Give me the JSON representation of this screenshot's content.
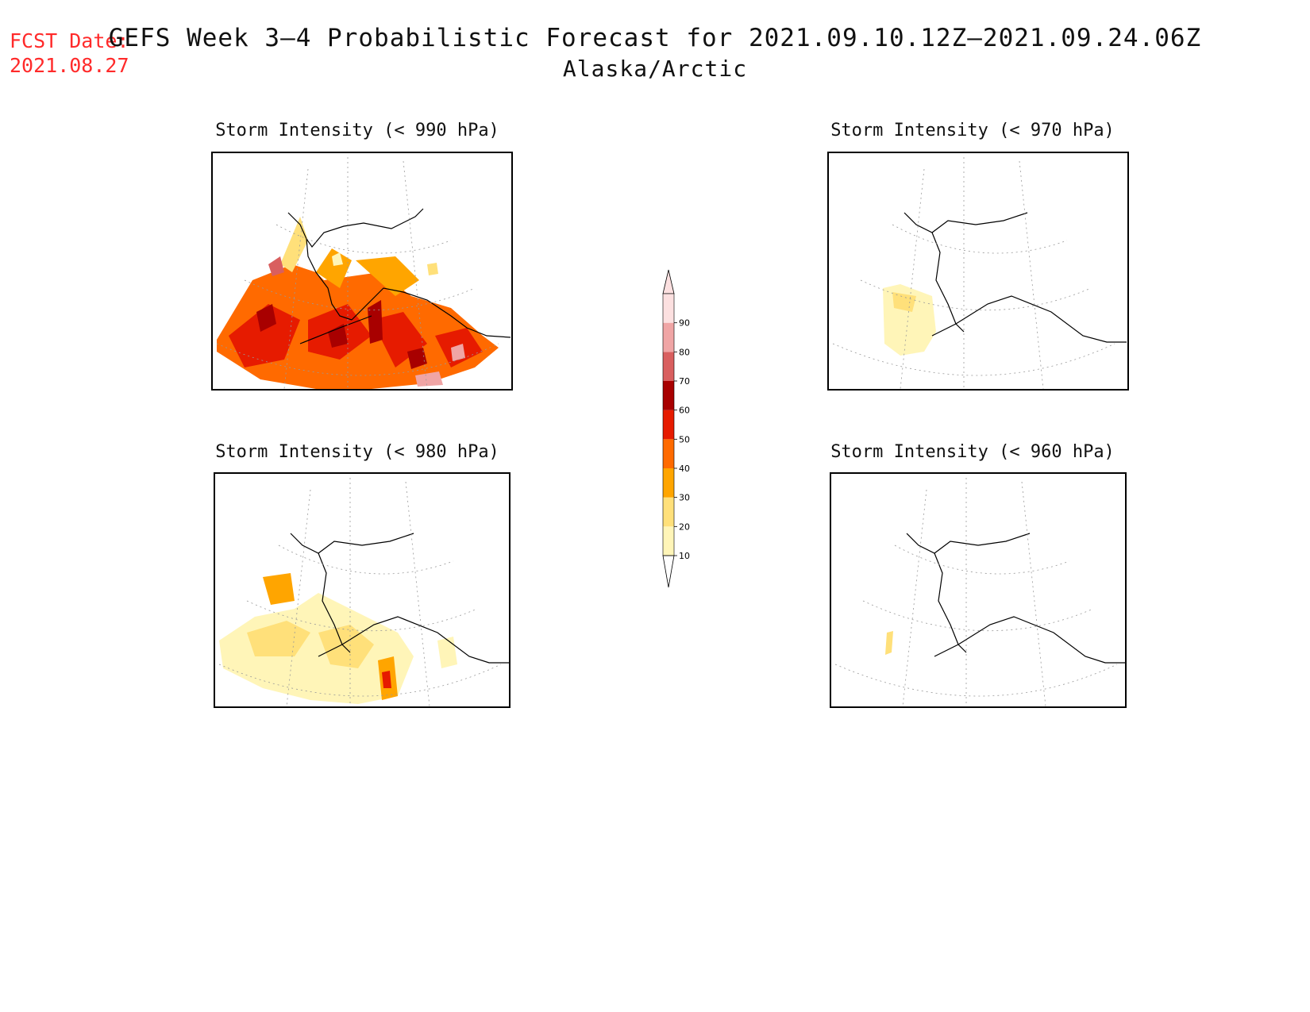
{
  "header": {
    "fcst_label": "FCST Date:",
    "fcst_date": "2021.08.27",
    "title": "GEFS Week 3–4 Probabilistic Forecast for 2021.09.10.12Z–2021.09.24.06Z",
    "subtitle": "Alaska/Arctic"
  },
  "panels": [
    {
      "id": "p990",
      "title": "Storm Intensity (< 990 hPa)",
      "coverage": "high"
    },
    {
      "id": "p970",
      "title": "Storm Intensity (< 970 hPa)",
      "coverage": "low"
    },
    {
      "id": "p980",
      "title": "Storm Intensity (< 980 hPa)",
      "coverage": "medium"
    },
    {
      "id": "p960",
      "title": "Storm Intensity (< 960 hPa)",
      "coverage": "minimal"
    }
  ],
  "colorbar": {
    "levels": [
      "10",
      "20",
      "30",
      "40",
      "50",
      "60",
      "70",
      "80",
      "90"
    ],
    "colors": [
      "#fff5b8",
      "#ffe07a",
      "#ffa500",
      "#ff6a00",
      "#e61b00",
      "#a80000",
      "#d95f5f",
      "#f0a5a5",
      "#fce0e0"
    ]
  }
}
